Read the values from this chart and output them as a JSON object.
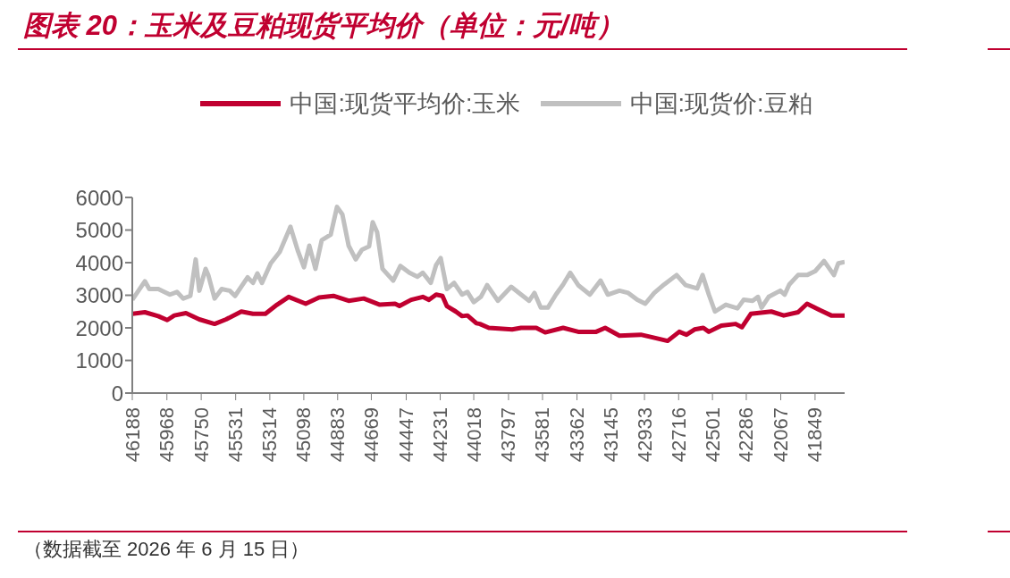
{
  "chart_data": {
    "type": "line",
    "title": "图表 20：玉米及豆粕现货平均价（单位：元/吨）",
    "annotations": [
      "（数据截至 2026 年 6 月 15 日）"
    ],
    "legend": "top",
    "marker": "none",
    "line_style": "solid",
    "xlim": [
      46188,
      41661
    ],
    "xticks": [
      46188,
      45968,
      45750,
      45531,
      45314,
      45098,
      44883,
      44669,
      44447,
      44231,
      44018,
      43797,
      43581,
      43362,
      43145,
      42933,
      42716,
      42501,
      42286,
      42067,
      41849
    ],
    "ylim": [
      0,
      6000
    ],
    "yticks": [
      0,
      1000,
      2000,
      3000,
      4000,
      5000,
      6000
    ],
    "series": [
      {
        "name": "中国:现货平均价:玉米",
        "color": "#c00030",
        "x": [
          46188,
          46108,
          46023,
          45966,
          45921,
          45847,
          45762,
          45665,
          45592,
          45495,
          45421,
          45342,
          45268,
          45194,
          45086,
          45001,
          44910,
          44813,
          44717,
          44615,
          44518,
          44490,
          44416,
          44342,
          44302,
          44257,
          44217,
          44189,
          44132,
          44092,
          44058,
          44001,
          43979,
          43922,
          43774,
          43717,
          43621,
          43564,
          43450,
          43354,
          43240,
          43183,
          43092,
          42956,
          42882,
          42786,
          42712,
          42666,
          42615,
          42559,
          42524,
          42445,
          42354,
          42314,
          42257,
          42127,
          42048,
          41957,
          41900,
          41820,
          41746,
          41661
        ],
        "values": [
          2430,
          2480,
          2360,
          2240,
          2380,
          2450,
          2260,
          2120,
          2260,
          2500,
          2430,
          2430,
          2710,
          2950,
          2740,
          2930,
          2980,
          2830,
          2900,
          2710,
          2740,
          2670,
          2860,
          2950,
          2860,
          3020,
          2980,
          2670,
          2500,
          2360,
          2380,
          2140,
          2120,
          2000,
          1950,
          2000,
          2000,
          1860,
          2000,
          1880,
          1880,
          2000,
          1760,
          1790,
          1710,
          1600,
          1880,
          1790,
          1950,
          2000,
          1880,
          2070,
          2120,
          2020,
          2430,
          2500,
          2380,
          2480,
          2740,
          2550,
          2380,
          2380
        ]
      },
      {
        "name": "中国:现货价:豆粕",
        "color": "#c0c0c0",
        "x": [
          46188,
          46108,
          46080,
          46023,
          45949,
          45904,
          45864,
          45819,
          45785,
          45762,
          45722,
          45705,
          45665,
          45620,
          45569,
          45535,
          45455,
          45421,
          45393,
          45364,
          45308,
          45251,
          45183,
          45137,
          45097,
          45063,
          45024,
          44984,
          44927,
          44887,
          44853,
          44813,
          44768,
          44728,
          44683,
          44660,
          44632,
          44598,
          44530,
          44484,
          44427,
          44376,
          44342,
          44291,
          44257,
          44228,
          44189,
          44143,
          44092,
          44058,
          44018,
          43973,
          43933,
          43865,
          43780,
          43717,
          43666,
          43632,
          43592,
          43547,
          43496,
          43450,
          43405,
          43354,
          43280,
          43212,
          43166,
          43092,
          43036,
          42979,
          42928,
          42871,
          42808,
          42729,
          42672,
          42598,
          42564,
          42524,
          42485,
          42416,
          42342,
          42303,
          42246,
          42212,
          42189,
          42144,
          42070,
          42042,
          42013,
          41957,
          41900,
          41848,
          41792,
          41729,
          41701,
          41661
        ],
        "values": [
          2860,
          3430,
          3190,
          3190,
          3020,
          3100,
          2900,
          2980,
          4100,
          3140,
          3810,
          3620,
          2900,
          3190,
          3140,
          2980,
          3550,
          3380,
          3670,
          3380,
          3980,
          4330,
          5100,
          4380,
          3860,
          4520,
          3810,
          4690,
          4860,
          5710,
          5480,
          4520,
          4100,
          4400,
          4500,
          5240,
          4930,
          3810,
          3450,
          3900,
          3690,
          3570,
          3690,
          3380,
          3930,
          4140,
          3190,
          3380,
          3020,
          3100,
          2790,
          2950,
          3310,
          2830,
          3260,
          3020,
          2830,
          3070,
          2620,
          2620,
          3020,
          3330,
          3690,
          3310,
          3020,
          3450,
          3020,
          3140,
          3070,
          2860,
          2740,
          3070,
          3330,
          3620,
          3310,
          3210,
          3620,
          3020,
          2500,
          2710,
          2600,
          2860,
          2830,
          2950,
          2620,
          2950,
          3140,
          3020,
          3330,
          3620,
          3620,
          3740,
          4050,
          3620,
          3980,
          4020
        ]
      }
    ]
  }
}
